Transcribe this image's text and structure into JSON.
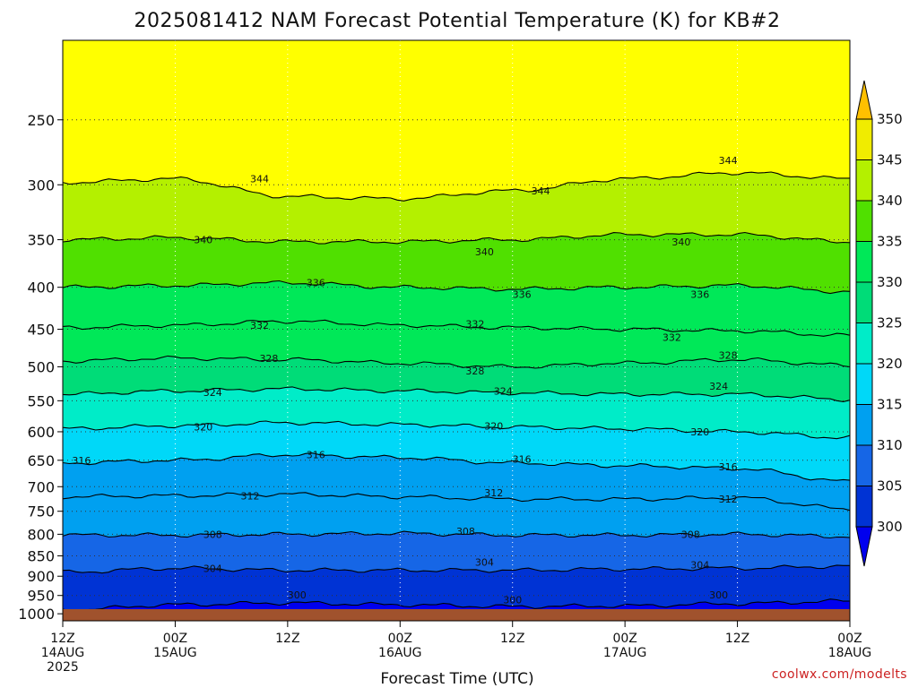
{
  "chart_data": {
    "type": "contour",
    "title": "2025081412 NAM Forecast Potential Temperature (K) for KB#2",
    "xlabel": "Forecast Time (UTC)",
    "ylabel": "",
    "credit": "coolwx.com/modelts",
    "x_ticks": [
      {
        "hour": 0,
        "line1": "12Z",
        "line2": "14AUG",
        "line3": "2025"
      },
      {
        "hour": 12,
        "line1": "00Z",
        "line2": "15AUG",
        "line3": ""
      },
      {
        "hour": 24,
        "line1": "12Z",
        "line2": "",
        "line3": ""
      },
      {
        "hour": 36,
        "line1": "00Z",
        "line2": "16AUG",
        "line3": ""
      },
      {
        "hour": 48,
        "line1": "12Z",
        "line2": "",
        "line3": ""
      },
      {
        "hour": 60,
        "line1": "00Z",
        "line2": "17AUG",
        "line3": ""
      },
      {
        "hour": 72,
        "line1": "12Z",
        "line2": "",
        "line3": ""
      },
      {
        "hour": 84,
        "line1": "00Z",
        "line2": "18AUG",
        "line3": ""
      }
    ],
    "x_range_hours": [
      0,
      84
    ],
    "y_ticks": [
      250,
      300,
      350,
      400,
      450,
      500,
      550,
      600,
      650,
      700,
      750,
      800,
      850,
      900,
      950,
      1000
    ],
    "y_range_hpa": [
      200,
      1020
    ],
    "y_scale": "log-pressure",
    "ground_hpa": 1010,
    "colorbar": {
      "levels": [
        300,
        305,
        310,
        315,
        320,
        325,
        330,
        335,
        340,
        345,
        350
      ],
      "colors": [
        "#0000ee",
        "#0033d4",
        "#1666e6",
        "#00a0f0",
        "#00d8f8",
        "#00ecc8",
        "#00dc78",
        "#00e858",
        "#50e000",
        "#b4f000",
        "#f0ec00",
        "#ffff00"
      ],
      "under_color": "#0000ee",
      "over_color": "#ffc000"
    },
    "contour_interval_K": 4,
    "contours": [
      {
        "theta": 300,
        "pressure_by_day": [
          990,
          975,
          970,
          975,
          980,
          978,
          972,
          965
        ]
      },
      {
        "theta": 304,
        "pressure_by_day": [
          890,
          880,
          885,
          885,
          885,
          882,
          880,
          875
        ]
      },
      {
        "theta": 308,
        "pressure_by_day": [
          802,
          802,
          800,
          798,
          802,
          802,
          800,
          805
        ]
      },
      {
        "theta": 312,
        "pressure_by_day": [
          720,
          718,
          715,
          720,
          725,
          725,
          722,
          745
        ]
      },
      {
        "theta": 316,
        "pressure_by_day": [
          655,
          650,
          640,
          645,
          655,
          660,
          665,
          690
        ]
      },
      {
        "theta": 320,
        "pressure_by_day": [
          595,
          590,
          585,
          588,
          592,
          595,
          600,
          610
        ]
      },
      {
        "theta": 324,
        "pressure_by_day": [
          540,
          535,
          532,
          535,
          538,
          540,
          540,
          548
        ]
      },
      {
        "theta": 328,
        "pressure_by_day": [
          492,
          488,
          490,
          495,
          500,
          495,
          490,
          498
        ]
      },
      {
        "theta": 332,
        "pressure_by_day": [
          448,
          445,
          440,
          445,
          448,
          450,
          452,
          458
        ]
      },
      {
        "theta": 336,
        "pressure_by_day": [
          400,
          398,
          395,
          400,
          402,
          400,
          398,
          405
        ]
      },
      {
        "theta": 340,
        "pressure_by_day": [
          350,
          348,
          352,
          352,
          350,
          345,
          345,
          352
        ]
      },
      {
        "theta": 344,
        "pressure_by_day": [
          298,
          295,
          310,
          312,
          305,
          295,
          290,
          295
        ]
      }
    ],
    "contour_labels": [
      {
        "value": "316",
        "hour": 2,
        "hpa": 650
      },
      {
        "value": "316",
        "hour": 27,
        "hpa": 640
      },
      {
        "value": "316",
        "hour": 49,
        "hpa": 648
      },
      {
        "value": "316",
        "hour": 71,
        "hpa": 662
      },
      {
        "value": "312",
        "hour": 20,
        "hpa": 718
      },
      {
        "value": "312",
        "hour": 46,
        "hpa": 712
      },
      {
        "value": "312",
        "hour": 71,
        "hpa": 725
      },
      {
        "value": "308",
        "hour": 16,
        "hpa": 800
      },
      {
        "value": "308",
        "hour": 43,
        "hpa": 793
      },
      {
        "value": "308",
        "hour": 67,
        "hpa": 800
      },
      {
        "value": "304",
        "hour": 16,
        "hpa": 880
      },
      {
        "value": "304",
        "hour": 45,
        "hpa": 865
      },
      {
        "value": "304",
        "hour": 68,
        "hpa": 872
      },
      {
        "value": "300",
        "hour": 25,
        "hpa": 948
      },
      {
        "value": "300",
        "hour": 48,
        "hpa": 962
      },
      {
        "value": "300",
        "hour": 70,
        "hpa": 948
      },
      {
        "value": "320",
        "hour": 15,
        "hpa": 592
      },
      {
        "value": "320",
        "hour": 46,
        "hpa": 590
      },
      {
        "value": "320",
        "hour": 68,
        "hpa": 600
      },
      {
        "value": "324",
        "hour": 16,
        "hpa": 537
      },
      {
        "value": "324",
        "hour": 47,
        "hpa": 535
      },
      {
        "value": "324",
        "hour": 70,
        "hpa": 528
      },
      {
        "value": "328",
        "hour": 22,
        "hpa": 488
      },
      {
        "value": "328",
        "hour": 44,
        "hpa": 506
      },
      {
        "value": "328",
        "hour": 71,
        "hpa": 484
      },
      {
        "value": "332",
        "hour": 21,
        "hpa": 445
      },
      {
        "value": "332",
        "hour": 44,
        "hpa": 443
      },
      {
        "value": "332",
        "hour": 65,
        "hpa": 460
      },
      {
        "value": "336",
        "hour": 27,
        "hpa": 395
      },
      {
        "value": "336",
        "hour": 49,
        "hpa": 408
      },
      {
        "value": "336",
        "hour": 68,
        "hpa": 408
      },
      {
        "value": "340",
        "hour": 15,
        "hpa": 350
      },
      {
        "value": "340",
        "hour": 45,
        "hpa": 362
      },
      {
        "value": "340",
        "hour": 66,
        "hpa": 352
      },
      {
        "value": "344",
        "hour": 21,
        "hpa": 295
      },
      {
        "value": "344",
        "hour": 51,
        "hpa": 305
      },
      {
        "value": "344",
        "hour": 71,
        "hpa": 280
      }
    ],
    "grid": true
  }
}
